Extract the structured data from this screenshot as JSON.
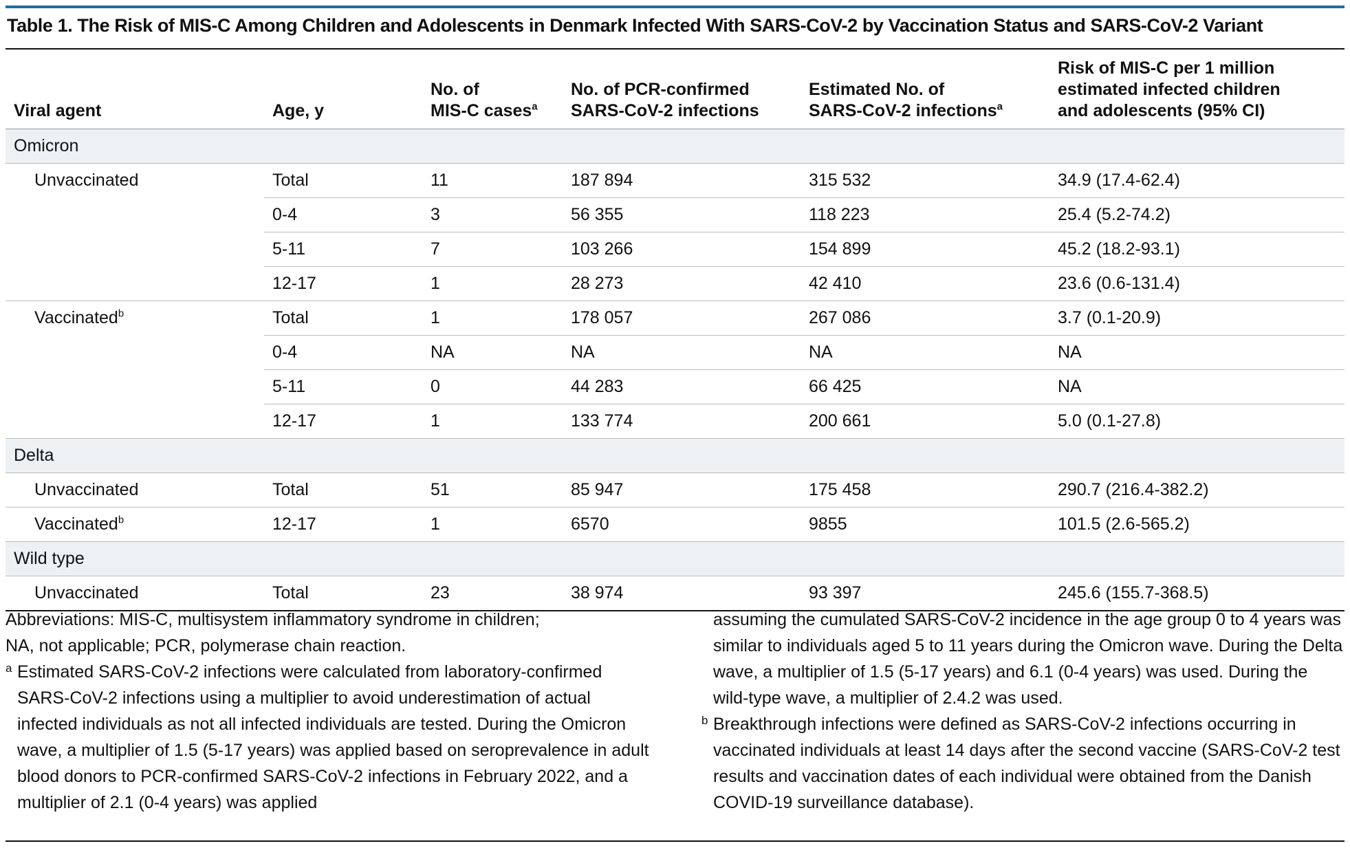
{
  "title": "Table 1. The Risk of MIS-C Among Children and Adolescents in Denmark Infected With SARS-CoV-2 by Vaccination Status and SARS-CoV-2 Variant",
  "headers": {
    "viral_agent": "Viral agent",
    "age": "Age, y",
    "cases_l1": "No. of",
    "cases_l2": "MIS-C cases",
    "cases_sup": "a",
    "pcr_l1": "No. of PCR-confirmed",
    "pcr_l2": "SARS-CoV-2 infections",
    "est_l1": "Estimated No. of",
    "est_l2": "SARS-CoV-2 infections",
    "est_sup": "a",
    "risk_l1": "Risk of MIS-C per 1 million",
    "risk_l2": "estimated infected children",
    "risk_l3": "and adolescents (95% CI)"
  },
  "groups": {
    "omicron": "Omicron",
    "delta": "Delta",
    "wild": "Wild type"
  },
  "status": {
    "unvaccinated": "Unvaccinated",
    "vaccinated": "Vaccinated",
    "vaccinated_sup": "b"
  },
  "rows": {
    "r1": {
      "age": "Total",
      "cases": "11",
      "pcr": "187 894",
      "est": "315 532",
      "risk": "34.9 (17.4-62.4)"
    },
    "r2": {
      "age": "0-4",
      "cases": "3",
      "pcr": "56 355",
      "est": "118 223",
      "risk": "25.4 (5.2-74.2)"
    },
    "r3": {
      "age": "5-11",
      "cases": "7",
      "pcr": "103 266",
      "est": "154 899",
      "risk": "45.2 (18.2-93.1)"
    },
    "r4": {
      "age": "12-17",
      "cases": "1",
      "pcr": "28 273",
      "est": "42 410",
      "risk": "23.6 (0.6-131.4)"
    },
    "r5": {
      "age": "Total",
      "cases": "1",
      "pcr": "178 057",
      "est": "267 086",
      "risk": "3.7 (0.1-20.9)"
    },
    "r6": {
      "age": "0-4",
      "cases": "NA",
      "pcr": "NA",
      "est": "NA",
      "risk": "NA"
    },
    "r7": {
      "age": "5-11",
      "cases": "0",
      "pcr": "44 283",
      "est": "66 425",
      "risk": "NA"
    },
    "r8": {
      "age": "12-17",
      "cases": "1",
      "pcr": "133 774",
      "est": "200 661",
      "risk": "5.0 (0.1-27.8)"
    },
    "r9": {
      "age": "Total",
      "cases": "51",
      "pcr": "85 947",
      "est": "175 458",
      "risk": "290.7 (216.4-382.2)"
    },
    "r10": {
      "age": "12-17",
      "cases": "1",
      "pcr": "6570",
      "est": "9855",
      "risk": "101.5 (2.6-565.2)"
    },
    "r11": {
      "age": "Total",
      "cases": "23",
      "pcr": "38 974",
      "est": "93 397",
      "risk": "245.6 (155.7-368.5)"
    }
  },
  "footnotes": {
    "abbrev_1": "Abbreviations: MIS-C, multisystem inflammatory syndrome in children;",
    "abbrev_2": "NA, not applicable; PCR, polymerase chain reaction.",
    "a_mark": "a",
    "a_left": "Estimated SARS-CoV-2 infections were calculated from laboratory-confirmed SARS-CoV-2 infections using a multiplier to avoid underestimation of actual infected individuals as not all infected individuals are tested. During the Omicron wave, a multiplier of 1.5 (5-17 years) was applied based on seroprevalence in adult blood donors to PCR-confirmed SARS-CoV-2 infections in February 2022, and a multiplier of 2.1 (0-4 years) was applied",
    "a_right": "assuming the cumulated SARS-CoV-2 incidence in the age group 0 to 4 years was similar to individuals aged 5 to 11 years during the Omicron wave. During the Delta wave, a multiplier of 1.5 (5-17 years) and 6.1 (0-4 years) was used. During the wild-type wave, a multiplier of 2.4.2 was used.",
    "b_mark": "b",
    "b_text": "Breakthrough infections were defined as SARS-CoV-2 infections occurring in vaccinated individuals at least 14 days after the second vaccine (SARS-CoV-2 test results and vaccination dates of each individual were obtained from the Danish COVID-19 surveillance database)."
  }
}
